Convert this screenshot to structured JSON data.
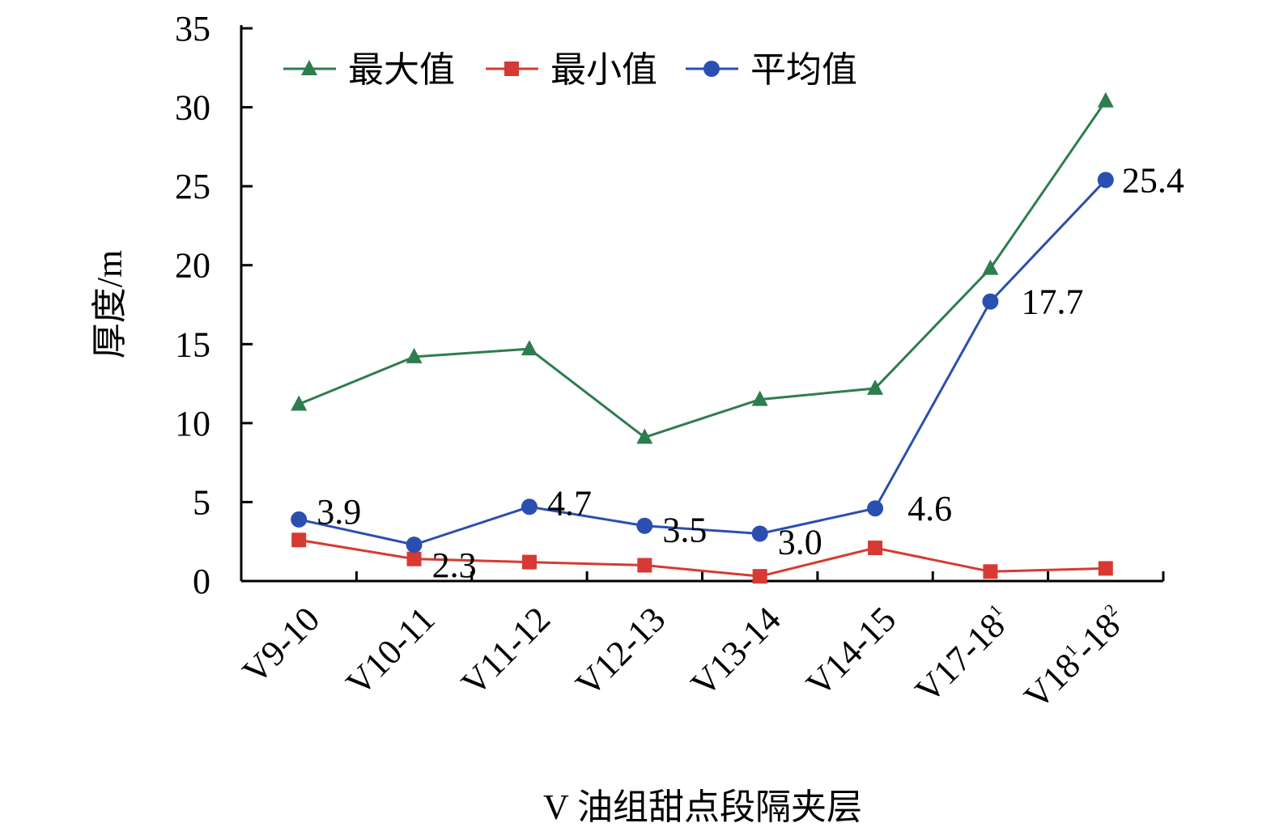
{
  "chart_data": {
    "type": "line",
    "title": "",
    "xlabel": "V 油组甜点段隔夹层",
    "ylabel": "厚度/m",
    "ylim": [
      0,
      35
    ],
    "yticks": [
      0,
      5,
      10,
      15,
      20,
      25,
      30,
      35
    ],
    "grid": false,
    "legend_position": "top-left",
    "categories": [
      {
        "base": "V9-10",
        "sup1": "",
        "mid": "",
        "sup2": ""
      },
      {
        "base": "V10-11",
        "sup1": "",
        "mid": "",
        "sup2": ""
      },
      {
        "base": "V11-12",
        "sup1": "",
        "mid": "",
        "sup2": ""
      },
      {
        "base": "V12-13",
        "sup1": "",
        "mid": "",
        "sup2": ""
      },
      {
        "base": "V13-14",
        "sup1": "",
        "mid": "",
        "sup2": ""
      },
      {
        "base": "V14-15",
        "sup1": "",
        "mid": "",
        "sup2": ""
      },
      {
        "base": "V17-18",
        "sup1": "1",
        "mid": "",
        "sup2": ""
      },
      {
        "base": "V18",
        "sup1": "1",
        "mid": "-18",
        "sup2": "2"
      }
    ],
    "series": [
      {
        "name": "最大值",
        "color": "#2e7d4f",
        "marker": "triangle",
        "values": [
          11.2,
          14.2,
          14.7,
          9.1,
          11.5,
          12.2,
          19.8,
          30.4
        ]
      },
      {
        "name": "最小值",
        "color": "#d63a33",
        "marker": "square",
        "values": [
          2.6,
          1.4,
          1.2,
          1.0,
          0.3,
          2.1,
          0.6,
          0.8
        ]
      },
      {
        "name": "平均值",
        "color": "#2a4fb0",
        "marker": "circle",
        "values": [
          3.9,
          2.3,
          4.7,
          3.5,
          3.0,
          4.6,
          17.7,
          25.4
        ],
        "data_labels": [
          "3.9",
          "2.3",
          "4.7",
          "3.5",
          "3.0",
          "4.6",
          "17.7",
          "25.4"
        ]
      }
    ]
  }
}
